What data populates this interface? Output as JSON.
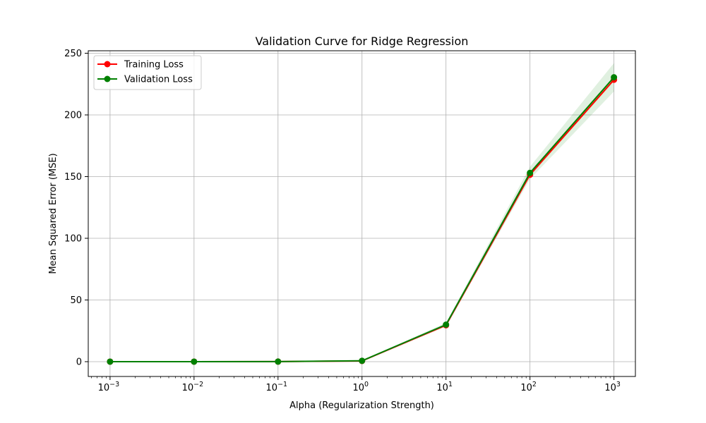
{
  "chart_data": {
    "type": "line",
    "title": "Validation Curve for Ridge Regression",
    "xlabel": "Alpha (Regularization Strength)",
    "ylabel": "Mean Squared Error (MSE)",
    "xscale": "log",
    "xlim": [
      0.00055,
      1800
    ],
    "ylim": [
      -12,
      252
    ],
    "grid": true,
    "legend_position": "top-left",
    "x": [
      0.001,
      0.01,
      0.1,
      1,
      10,
      100,
      1000
    ],
    "x_tick_labels": [
      {
        "value": 0.001,
        "base": "10",
        "exp": "−3"
      },
      {
        "value": 0.01,
        "base": "10",
        "exp": "−2"
      },
      {
        "value": 0.1,
        "base": "10",
        "exp": "−1"
      },
      {
        "value": 1,
        "base": "10",
        "exp": "0"
      },
      {
        "value": 10,
        "base": "10",
        "exp": "1"
      },
      {
        "value": 100,
        "base": "10",
        "exp": "2"
      },
      {
        "value": 1000,
        "base": "10",
        "exp": "3"
      }
    ],
    "y_ticks": [
      0,
      50,
      100,
      150,
      200,
      250
    ],
    "series": [
      {
        "name": "Training Loss",
        "color": "#ff0000",
        "values": [
          0.01,
          0.01,
          0.05,
          0.6,
          29.5,
          151.5,
          228.5
        ],
        "band_lower": [
          0.01,
          0.01,
          0.05,
          0.5,
          28.5,
          150,
          227
        ],
        "band_upper": [
          0.01,
          0.01,
          0.05,
          0.7,
          30.5,
          153,
          230
        ],
        "band_color": "#ffa500"
      },
      {
        "name": "Validation Loss",
        "color": "#008000",
        "values": [
          0.02,
          0.02,
          0.06,
          0.7,
          30.0,
          153.0,
          230.5
        ],
        "band_lower": [
          0.02,
          0.02,
          0.06,
          0.5,
          28.5,
          148,
          219
        ],
        "band_upper": [
          0.02,
          0.02,
          0.06,
          0.9,
          31.5,
          158,
          242
        ],
        "band_color": "#008000"
      }
    ]
  }
}
